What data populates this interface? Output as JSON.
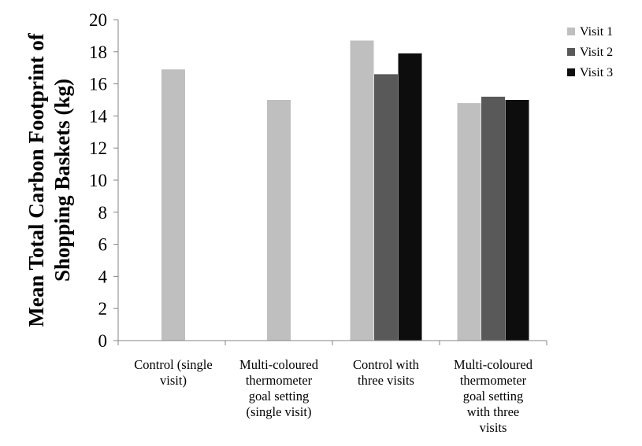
{
  "chart_data": {
    "type": "bar",
    "title": "",
    "xlabel": "",
    "ylabel_lines": [
      "Mean Total Carbon Footprint of",
      "Shopping Baskets (kg)"
    ],
    "ylim": [
      0,
      20
    ],
    "yticks": [
      0,
      2,
      4,
      6,
      8,
      10,
      12,
      14,
      16,
      18,
      20
    ],
    "grid": false,
    "legend_position": "top-right",
    "categories": [
      [
        "Control (single",
        "visit)"
      ],
      [
        "Multi-coloured",
        "thermometer",
        "goal setting",
        "(single visit)"
      ],
      [
        "Control with",
        "three visits"
      ],
      [
        "Multi-coloured",
        "thermometer",
        "goal setting",
        "with three",
        "visits"
      ]
    ],
    "series": [
      {
        "name": "Visit 1",
        "color": "#bfbfbf",
        "values": [
          16.9,
          15.0,
          18.7,
          14.8
        ]
      },
      {
        "name": "Visit 2",
        "color": "#595959",
        "values": [
          null,
          null,
          16.6,
          15.2
        ]
      },
      {
        "name": "Visit 3",
        "color": "#0d0d0d",
        "values": [
          null,
          null,
          17.9,
          15.0
        ]
      }
    ]
  }
}
